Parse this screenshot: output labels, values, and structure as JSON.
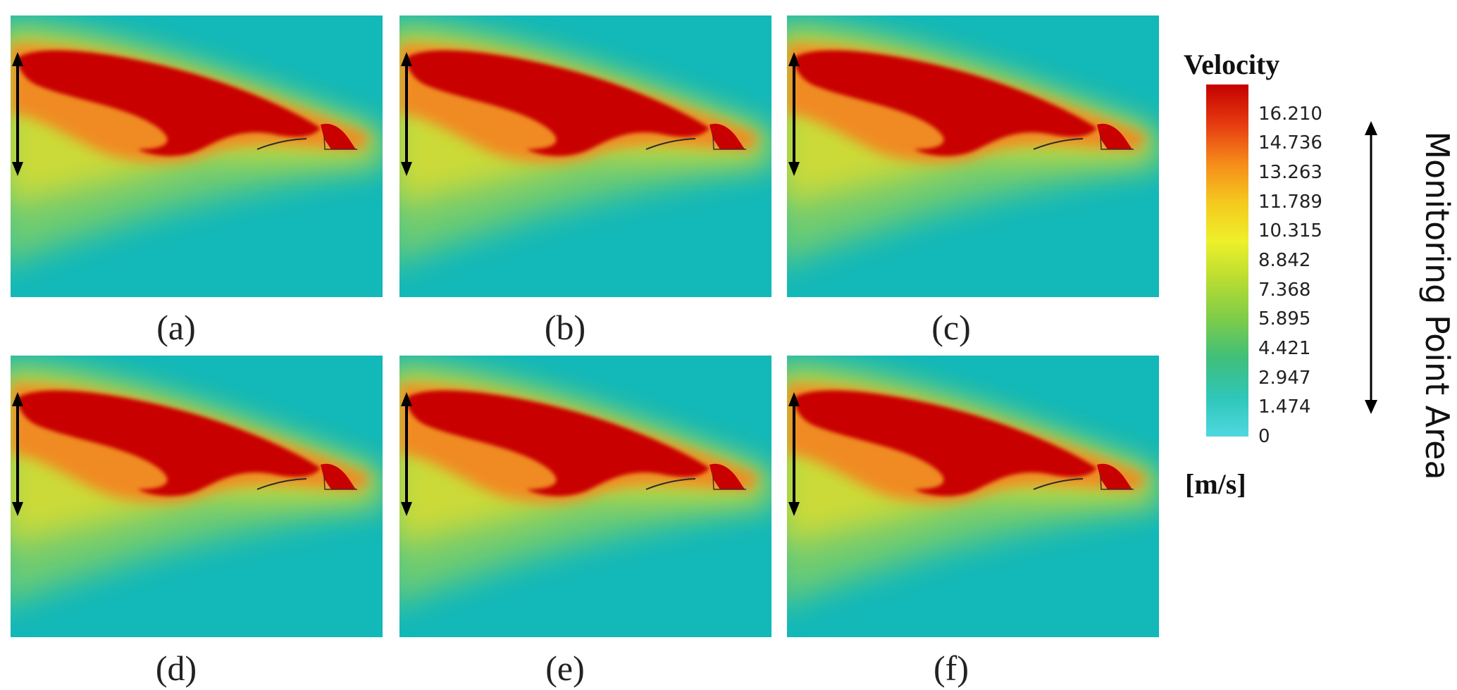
{
  "panels": [
    {
      "caption": "(a)"
    },
    {
      "caption": "(b)"
    },
    {
      "caption": "(c)"
    },
    {
      "caption": "(d)"
    },
    {
      "caption": "(e)"
    },
    {
      "caption": "(f)"
    }
  ],
  "legend": {
    "title": "Velocity",
    "unit": "[m/s]",
    "min": 0,
    "max": 17.68,
    "ticks": [
      "16.210",
      "14.736",
      "13.263",
      "11.789",
      "10.315",
      "8.842",
      "7.368",
      "5.895",
      "4.421",
      "2.947",
      "1.474",
      "0"
    ],
    "tick_values": [
      16.21,
      14.736,
      13.263,
      11.789,
      10.315,
      8.842,
      7.368,
      5.895,
      4.421,
      2.947,
      1.474,
      0
    ],
    "colors": [
      "#c40000",
      "#e63a10",
      "#f58a1a",
      "#f5c81e",
      "#eef02a",
      "#b8dc32",
      "#7ccc4a",
      "#3fbf7a",
      "#2fc6b8",
      "#4fd8e0"
    ]
  },
  "side_label": "Monitoring Point Area",
  "colors": {
    "background_flow": "#13b8b8",
    "jet_core": "#c80000"
  }
}
